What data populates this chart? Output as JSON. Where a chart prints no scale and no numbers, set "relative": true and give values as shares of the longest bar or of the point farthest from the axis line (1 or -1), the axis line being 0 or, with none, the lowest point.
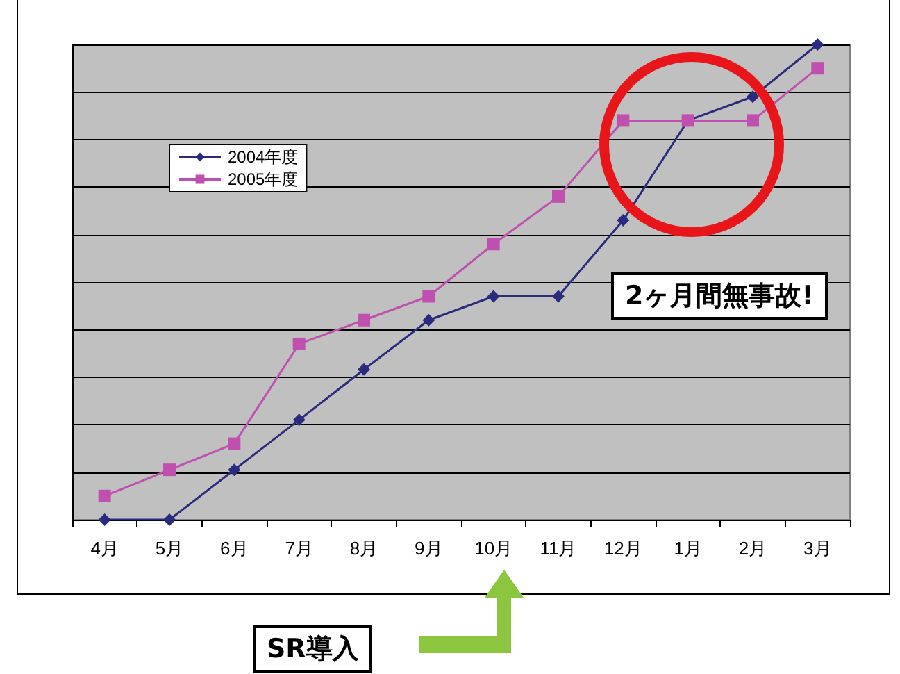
{
  "chart_data": {
    "type": "line",
    "relative": true,
    "categories": [
      "4月",
      "5月",
      "6月",
      "7月",
      "8月",
      "9月",
      "10月",
      "11月",
      "12月",
      "1月",
      "2月",
      "3月"
    ],
    "series": [
      {
        "name": "2004年度",
        "color": "#2a2a7e",
        "marker": "diamond",
        "values": [
          0,
          0,
          0.105,
          0.21,
          0.316,
          0.42,
          0.47,
          0.47,
          0.63,
          0.84,
          0.89,
          1
        ]
      },
      {
        "name": "2005年度",
        "color": "#c050b0",
        "marker": "square",
        "values": [
          0.05,
          0.105,
          0.16,
          0.37,
          0.42,
          0.47,
          0.58,
          0.68,
          0.84,
          0.84,
          0.84,
          0.95
        ]
      }
    ],
    "grid": "y",
    "legend": "top left",
    "annotations": [
      "2ヶ月間無事故!",
      "SR導入"
    ]
  }
}
